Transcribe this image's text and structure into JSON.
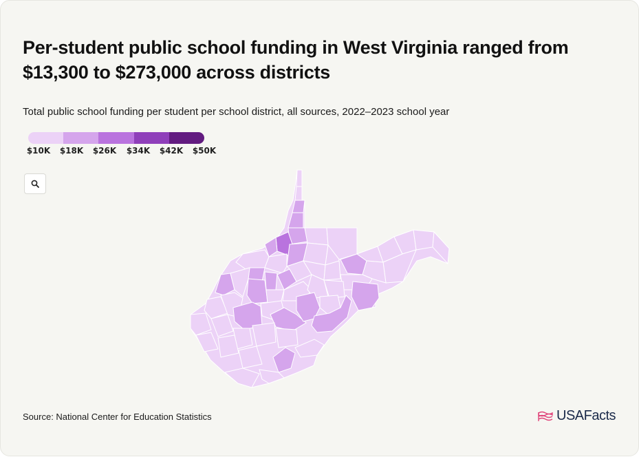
{
  "title": "Per-student public school funding in West Virginia ranged from $13,300 to $273,000 across districts",
  "subtitle": "Total public school funding per student per school district, all sources, 2022–2023 school year",
  "legend": {
    "labels": [
      "$10K",
      "$18K",
      "$26K",
      "$34K",
      "$42K",
      "$50K"
    ],
    "colors": [
      "#ecd2f7",
      "#d5a5ec",
      "#b973de",
      "#8f3fba",
      "#621b80"
    ]
  },
  "zoom_icon": "search-icon",
  "source": "Source: National Center for Education Statistics",
  "logo": {
    "text": "USAFacts",
    "icon": "flag-icon",
    "color": "#e0457b"
  },
  "colors": {
    "background": "#f6f6f2",
    "county_border": "#ffffff"
  }
}
